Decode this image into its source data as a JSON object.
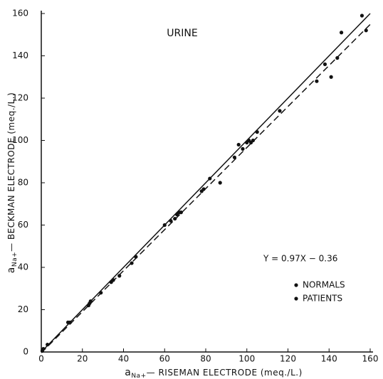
{
  "chart_data": {
    "type": "scatter",
    "title": "URINE",
    "x_label_symbol": "a",
    "x_label_sub": "Na+",
    "x_label": "— RISEMAN ELECTRODE (meq./L.)",
    "y_label_symbol": "a",
    "y_label_sub": "Na+",
    "y_label": "— BECKMAN ELECTRODE (meq./L.)",
    "annotation": "Y = 0.97X − 0.36",
    "xlim": [
      0,
      160
    ],
    "ylim": [
      0,
      160
    ],
    "xticks": [
      0,
      20,
      40,
      60,
      80,
      100,
      120,
      140,
      160
    ],
    "yticks": [
      0,
      20,
      40,
      60,
      80,
      100,
      120,
      140,
      160
    ],
    "series": [
      {
        "name": "NORMALS",
        "color": "#111111",
        "x": [
          0.5,
          1,
          3,
          13,
          14,
          23,
          23.5,
          24,
          29,
          34,
          35,
          38,
          44,
          46,
          60,
          63,
          65,
          66,
          67,
          68
        ],
        "values": [
          0.5,
          1.5,
          3.5,
          14,
          14,
          22,
          23,
          24,
          28,
          33,
          34,
          36,
          42,
          45,
          60,
          62,
          63,
          65,
          66,
          66
        ]
      },
      {
        "name": "PATIENTS",
        "color": "#111111",
        "x": [
          78,
          79,
          82,
          87,
          94,
          96,
          98,
          100,
          101,
          102,
          103,
          105,
          116,
          134,
          138,
          141,
          144,
          146,
          156,
          158
        ],
        "values": [
          76,
          77,
          82,
          80,
          92,
          98,
          96,
          99,
          100,
          99,
          100,
          104,
          114,
          128,
          136,
          130,
          139,
          151,
          159,
          152
        ]
      }
    ],
    "lines": [
      {
        "style": "solid",
        "x": [
          0,
          160
        ],
        "values": [
          0,
          160
        ]
      },
      {
        "style": "dashed",
        "x": [
          0,
          160
        ],
        "values": [
          -0.36,
          154.84
        ]
      }
    ]
  }
}
